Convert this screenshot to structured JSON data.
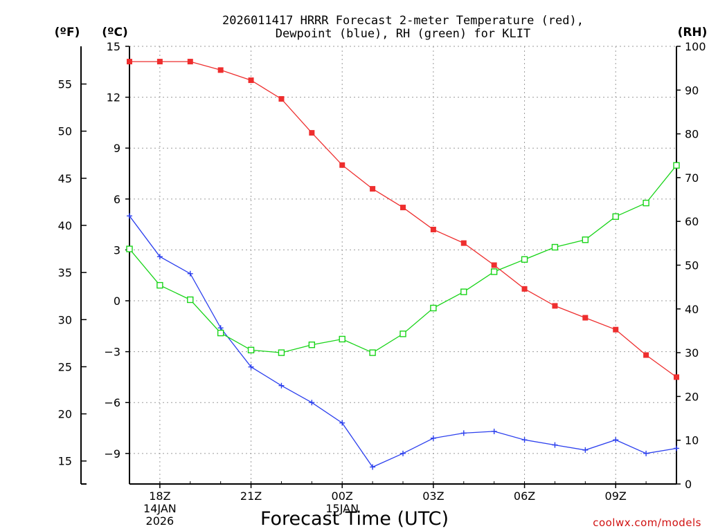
{
  "chart_data": {
    "type": "line",
    "title_line1": "2026011417 HRRR Forecast 2-meter Temperature (red),",
    "title_line2": "Dewpoint (blue), RH (green) for KLIT",
    "xlabel": "Forecast Time (UTC)",
    "credit": "coolwx.com/models",
    "units": {
      "fahrenheit": "(ºF)",
      "celsius": "(ºC)",
      "rh": "(RH)"
    },
    "hours": [
      0,
      1,
      2,
      3,
      4,
      5,
      6,
      7,
      8,
      9,
      10,
      11,
      12,
      13,
      14,
      15,
      16,
      17,
      18
    ],
    "x_range": [
      0,
      18
    ],
    "x_ticks": [
      {
        "hour": 1,
        "label": "18Z",
        "line2": "14JAN",
        "line3": "2026"
      },
      {
        "hour": 4,
        "label": "21Z"
      },
      {
        "hour": 7,
        "label": "00Z",
        "line2": "15JAN"
      },
      {
        "hour": 10,
        "label": "03Z"
      },
      {
        "hour": 13,
        "label": "06Z"
      },
      {
        "hour": 16,
        "label": "09Z"
      }
    ],
    "celsius_axis": {
      "range": [
        -10.8,
        15
      ],
      "ticks": [
        -9,
        -6,
        -3,
        0,
        3,
        6,
        9,
        12,
        15
      ],
      "tick_labels": [
        "−9",
        "−6",
        "−3",
        "0",
        "3",
        "6",
        "9",
        "12",
        "15"
      ]
    },
    "fahrenheit_axis": {
      "ticks": [
        15,
        20,
        25,
        30,
        35,
        40,
        45,
        50,
        55
      ],
      "tick_labels": [
        "15",
        "20",
        "25",
        "30",
        "35",
        "40",
        "45",
        "50",
        "55"
      ]
    },
    "rh_axis": {
      "range": [
        0,
        100
      ],
      "ticks": [
        0,
        10,
        20,
        30,
        40,
        50,
        60,
        70,
        80,
        90,
        100
      ],
      "tick_labels": [
        "0",
        "10",
        "20",
        "30",
        "40",
        "50",
        "60",
        "70",
        "80",
        "90",
        "100"
      ]
    },
    "series": [
      {
        "name": "2-meter Temperature",
        "unit": "C",
        "color": "#ee2e2e",
        "marker": "filled-square",
        "values": [
          14.1,
          14.1,
          14.1,
          13.6,
          13.0,
          11.9,
          9.9,
          8.0,
          6.6,
          5.5,
          4.2,
          3.4,
          2.1,
          0.7,
          -0.3,
          -1.0,
          -1.7,
          -3.2,
          -4.5
        ]
      },
      {
        "name": "Dewpoint",
        "unit": "C",
        "color": "#2b3fee",
        "marker": "plus",
        "values": [
          5.0,
          2.6,
          1.6,
          -1.6,
          -3.9,
          -5.0,
          -6.0,
          -7.2,
          -9.8,
          -9.0,
          -8.1,
          -7.8,
          -7.7,
          -8.2,
          -8.5,
          -8.8,
          -8.2,
          -9.0,
          -8.7
        ]
      },
      {
        "name": "RH",
        "unit": "%",
        "color": "#18d418",
        "marker": "open-square",
        "values": [
          53.7,
          45.4,
          42.1,
          34.5,
          30.6,
          30.0,
          31.8,
          33.1,
          30.0,
          34.3,
          40.2,
          43.9,
          48.5,
          51.3,
          54.1,
          55.8,
          61.1,
          64.2,
          72.8
        ]
      }
    ]
  }
}
